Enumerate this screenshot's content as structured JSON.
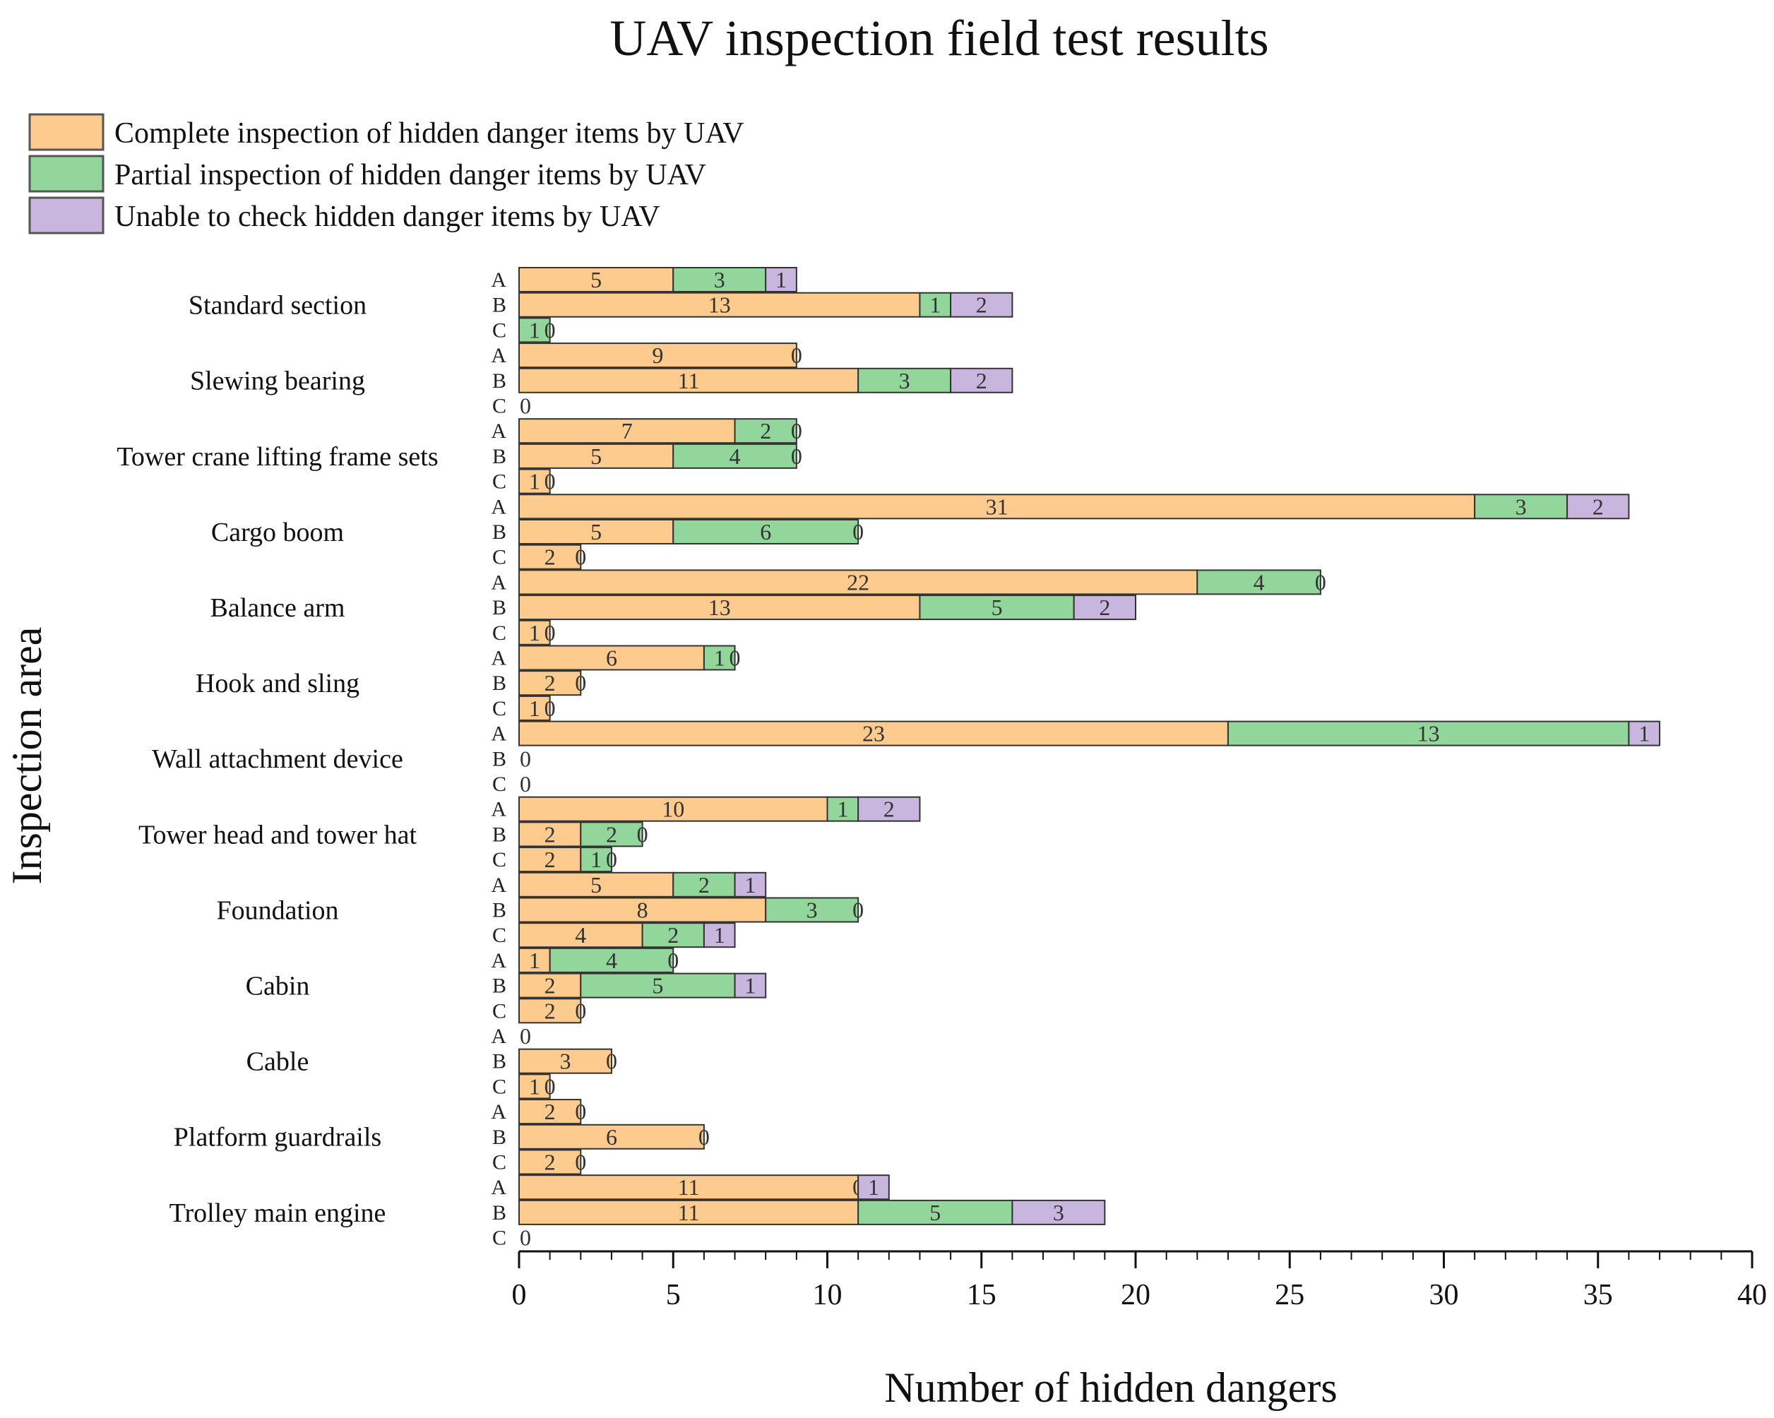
{
  "chart_data": {
    "type": "bar",
    "orientation": "horizontal",
    "stacked": true,
    "title": "UAV inspection field test results",
    "xlabel": "Number of hidden dangers",
    "ylabel": "Inspection area",
    "xlim": [
      0,
      40
    ],
    "x_ticks": [
      0,
      5,
      10,
      15,
      20,
      25,
      30,
      35,
      40
    ],
    "legend_position": "top-left",
    "series": [
      {
        "key": "complete",
        "name": "Complete inspection of hidden danger items by UAV",
        "color": "#FDCB8D"
      },
      {
        "key": "partial",
        "name": "Partial inspection of hidden danger items by UAV",
        "color": "#93D69B"
      },
      {
        "key": "unable",
        "name": "Unable to check hidden danger items by UAV",
        "color": "#C9B6DE"
      }
    ],
    "areas": [
      {
        "name": "Standard section",
        "groups": [
          {
            "label": "A",
            "values": [
              5,
              3,
              1
            ]
          },
          {
            "label": "B",
            "values": [
              13,
              1,
              2
            ]
          },
          {
            "label": "C",
            "values": [
              0,
              1,
              0
            ]
          }
        ]
      },
      {
        "name": "Slewing bearing",
        "groups": [
          {
            "label": "A",
            "values": [
              9,
              0
            ]
          },
          {
            "label": "B",
            "values": [
              11,
              3,
              2
            ]
          },
          {
            "label": "C",
            "values": [
              0
            ]
          }
        ]
      },
      {
        "name": "Tower crane lifting frame sets",
        "groups": [
          {
            "label": "A",
            "values": [
              7,
              2,
              0
            ]
          },
          {
            "label": "B",
            "values": [
              5,
              4,
              0
            ]
          },
          {
            "label": "C",
            "values": [
              1,
              0
            ]
          }
        ]
      },
      {
        "name": "Cargo boom",
        "groups": [
          {
            "label": "A",
            "values": [
              31,
              3,
              2
            ]
          },
          {
            "label": "B",
            "values": [
              5,
              6,
              0
            ]
          },
          {
            "label": "C",
            "values": [
              2,
              0
            ]
          }
        ]
      },
      {
        "name": "Balance arm",
        "groups": [
          {
            "label": "A",
            "values": [
              22,
              4,
              0
            ]
          },
          {
            "label": "B",
            "values": [
              13,
              5,
              2
            ]
          },
          {
            "label": "C",
            "values": [
              1,
              0
            ]
          }
        ]
      },
      {
        "name": "Hook and sling",
        "groups": [
          {
            "label": "A",
            "values": [
              6,
              1,
              0
            ]
          },
          {
            "label": "B",
            "values": [
              2,
              0
            ]
          },
          {
            "label": "C",
            "values": [
              1,
              0
            ]
          }
        ]
      },
      {
        "name": "Wall attachment device",
        "groups": [
          {
            "label": "A",
            "values": [
              23,
              13,
              1
            ]
          },
          {
            "label": "B",
            "values": [
              0
            ]
          },
          {
            "label": "C",
            "values": [
              0
            ]
          }
        ]
      },
      {
        "name": "Tower head and tower hat",
        "groups": [
          {
            "label": "A",
            "values": [
              10,
              1,
              2
            ]
          },
          {
            "label": "B",
            "values": [
              2,
              2,
              0
            ]
          },
          {
            "label": "C",
            "values": [
              2,
              1,
              0
            ]
          }
        ]
      },
      {
        "name": "Foundation",
        "groups": [
          {
            "label": "A",
            "values": [
              5,
              2,
              1
            ]
          },
          {
            "label": "B",
            "values": [
              8,
              3,
              0
            ]
          },
          {
            "label": "C",
            "values": [
              4,
              2,
              1
            ]
          }
        ]
      },
      {
        "name": "Cabin",
        "groups": [
          {
            "label": "A",
            "values": [
              1,
              4,
              0
            ]
          },
          {
            "label": "B",
            "values": [
              2,
              5,
              1
            ]
          },
          {
            "label": "C",
            "values": [
              2,
              0
            ]
          }
        ]
      },
      {
        "name": "Cable",
        "groups": [
          {
            "label": "A",
            "values": [
              0
            ]
          },
          {
            "label": "B",
            "values": [
              3,
              0
            ]
          },
          {
            "label": "C",
            "values": [
              1,
              0
            ]
          }
        ]
      },
      {
        "name": "Platform guardrails",
        "groups": [
          {
            "label": "A",
            "values": [
              2,
              0
            ]
          },
          {
            "label": "B",
            "values": [
              6,
              0
            ]
          },
          {
            "label": "C",
            "values": [
              2,
              0
            ]
          }
        ]
      },
      {
        "name": "Trolley main engine",
        "groups": [
          {
            "label": "A",
            "values": [
              11,
              0,
              1
            ]
          },
          {
            "label": "B",
            "values": [
              11,
              5,
              3
            ]
          },
          {
            "label": "C",
            "values": [
              0
            ]
          }
        ]
      }
    ]
  }
}
